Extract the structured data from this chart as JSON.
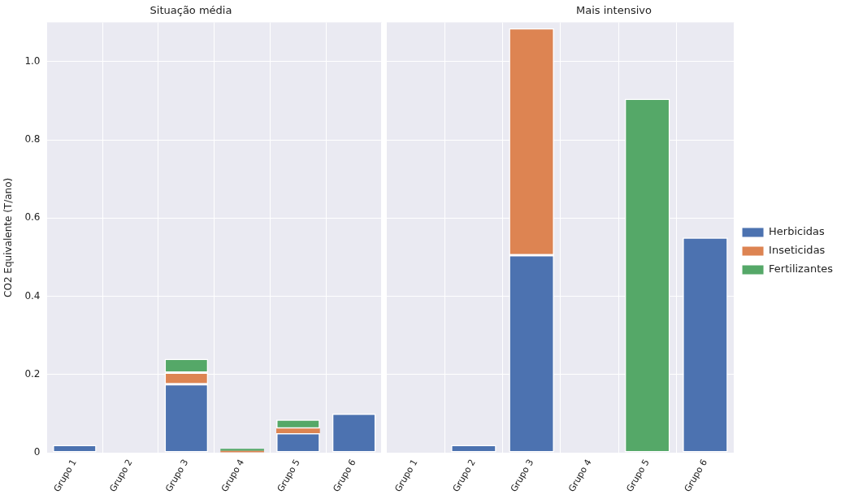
{
  "chart_data": [
    {
      "type": "bar",
      "title": "Situação média",
      "ylabel": "CO2 Equivalente (T/ano)",
      "categories": [
        "Grupo 1",
        "Grupo 2",
        "Grupo 3",
        "Grupo 4",
        "Grupo 5",
        "Grupo 6"
      ],
      "stacked": true,
      "ylim": [
        0,
        1.1
      ],
      "yticks": [
        0,
        0.2,
        0.4,
        0.6,
        0.8,
        {
          "value": 1,
          "label": "1.0"
        }
      ],
      "grid": true,
      "legend": false,
      "series": [
        {
          "color": "#4c72b0",
          "values": [
            0.02,
            0,
            0.175,
            0,
            0.05,
            0.1
          ]
        },
        {
          "color": "#dd8452",
          "values": [
            0,
            0,
            0.03,
            0.005,
            0.012,
            0
          ]
        },
        {
          "color": "#55a868",
          "values": [
            0,
            0,
            0.035,
            0.005,
            0.023,
            0
          ]
        }
      ]
    },
    {
      "type": "bar",
      "title": "Mais intensivo",
      "categories": [
        "Grupo 1",
        "Grupo 2",
        "Grupo 3",
        "Grupo 4",
        "Grupo 5",
        "Grupo 6"
      ],
      "stacked": true,
      "ylim": [
        0,
        1.1
      ],
      "yticks": [
        0,
        0.2,
        0.4,
        0.6,
        0.8,
        1
      ],
      "grid": true,
      "legend": "right",
      "tick_labels": "x",
      "series": [
        {
          "name": "Herbicidas",
          "color": "#4c72b0",
          "values": [
            0,
            0.02,
            0.505,
            0,
            0,
            0.55
          ]
        },
        {
          "name": "Inseticidas",
          "color": "#dd8452",
          "values": [
            0,
            0,
            0.58,
            0,
            0,
            0
          ]
        },
        {
          "name": "Fertilizantes",
          "color": "#55a868",
          "values": [
            0,
            0,
            0,
            0,
            0.905,
            0
          ]
        }
      ]
    }
  ]
}
